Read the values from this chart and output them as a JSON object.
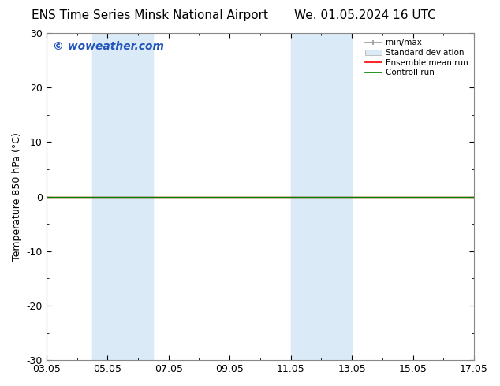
{
  "title_left": "ENS Time Series Minsk National Airport",
  "title_right": "We. 01.05.2024 16 UTC",
  "ylabel": "Temperature 850 hPa (°C)",
  "watermark": "© woweather.com",
  "ylim": [
    -30,
    30
  ],
  "yticks": [
    -30,
    -20,
    -10,
    0,
    10,
    20,
    30
  ],
  "xtick_labels": [
    "03.05",
    "05.05",
    "07.05",
    "09.05",
    "11.05",
    "13.05",
    "15.05",
    "17.05"
  ],
  "xtick_positions": [
    0,
    2,
    4,
    6,
    8,
    10,
    12,
    14
  ],
  "shaded_bands": [
    {
      "x_start": 1.5,
      "x_end": 3.5
    },
    {
      "x_start": 8.0,
      "x_end": 10.0
    }
  ],
  "shaded_color": "#daeaf7",
  "green_line_y": 0,
  "red_line_y": 0,
  "background_color": "#ffffff",
  "plot_bg_color": "#ffffff",
  "border_color": "#888888",
  "legend_items": [
    {
      "label": "min/max",
      "color": "#aaaaaa",
      "style": "line_with_caps"
    },
    {
      "label": "Standard deviation",
      "color": "#c8dff0",
      "style": "filled_box"
    },
    {
      "label": "Ensemble mean run",
      "color": "#ff0000",
      "style": "line"
    },
    {
      "label": "Controll run",
      "color": "#008000",
      "style": "line"
    }
  ],
  "title_fontsize": 11,
  "axis_label_fontsize": 9,
  "tick_fontsize": 9,
  "watermark_color": "#2255bb",
  "watermark_fontsize": 10,
  "x_total_days": 14
}
